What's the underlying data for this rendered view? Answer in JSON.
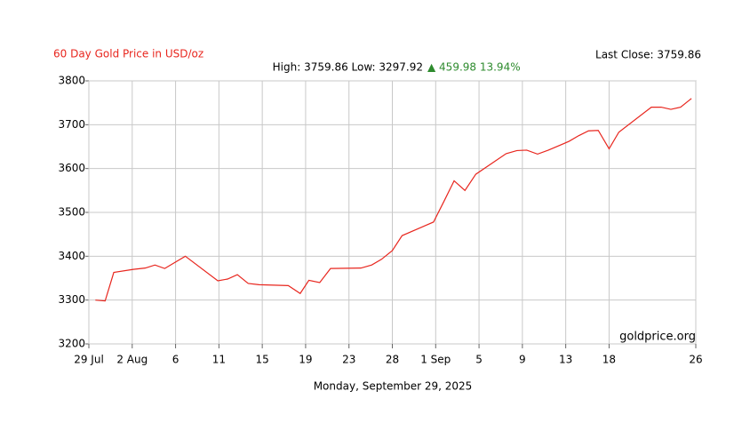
{
  "chart_data": {
    "type": "line",
    "title": "60 Day Gold Price in USD/oz",
    "subtitle": "High: 3759.86 Low: 3297.92",
    "change": "▲ 459.98 13.94%",
    "last_close": "Last Close: 3759.86",
    "watermark": "goldprice.org",
    "xlabel": "Monday, September 29, 2025",
    "x": [
      0.6,
      1.5,
      2.3,
      4.1,
      5.2,
      6.1,
      7.0,
      8.9,
      11.9,
      12.8,
      13.7,
      14.7,
      15.7,
      18.4,
      19.5,
      20.3,
      21.3,
      22.3,
      25.1,
      26.1,
      27.0,
      28.0,
      28.9,
      31.8,
      32.8,
      33.7,
      34.7,
      35.7,
      38.5,
      39.5,
      40.4,
      41.4,
      42.4,
      44.3,
      45.2,
      46.1,
      47.0,
      48.0,
      48.9,
      51.9,
      52.8,
      53.7,
      54.6,
      55.6
    ],
    "series": [
      {
        "name": "Gold",
        "color": "#e8261e",
        "values": [
          3300,
          3298,
          3363,
          3370,
          3373,
          3380,
          3372,
          3400,
          3344,
          3348,
          3358,
          3338,
          3335,
          3333,
          3315,
          3345,
          3340,
          3372,
          3373,
          3380,
          3393,
          3413,
          3447,
          3478,
          3527,
          3572,
          3550,
          3587,
          3634,
          3641,
          3642,
          3633,
          3642,
          3662,
          3675,
          3686,
          3687,
          3645,
          3683,
          3740,
          3740,
          3735,
          3740,
          3759.86
        ]
      }
    ],
    "xlim": [
      0,
      56
    ],
    "xticks": [
      {
        "value": 0,
        "label": "29 Jul"
      },
      {
        "value": 4,
        "label": "2 Aug"
      },
      {
        "value": 8,
        "label": "6"
      },
      {
        "value": 12,
        "label": "11"
      },
      {
        "value": 16,
        "label": "15"
      },
      {
        "value": 20,
        "label": "19"
      },
      {
        "value": 24,
        "label": "23"
      },
      {
        "value": 28,
        "label": "28"
      },
      {
        "value": 32,
        "label": "1 Sep"
      },
      {
        "value": 36,
        "label": "5"
      },
      {
        "value": 40,
        "label": "9"
      },
      {
        "value": 44,
        "label": "13"
      },
      {
        "value": 48,
        "label": "18"
      },
      {
        "value": 56,
        "label": "26"
      }
    ],
    "ylim": [
      3200,
      3800
    ],
    "yticks": [
      3200,
      3300,
      3400,
      3500,
      3600,
      3700,
      3800
    ],
    "grid": true
  }
}
